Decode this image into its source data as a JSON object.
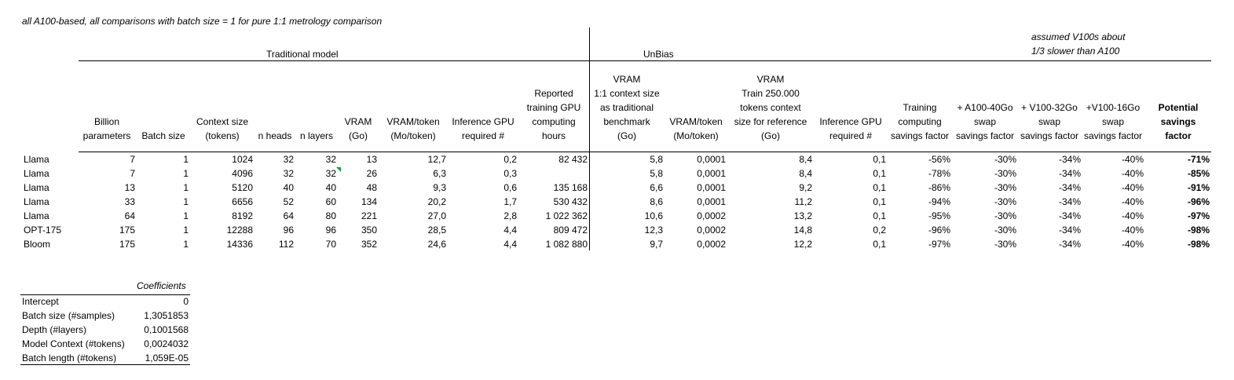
{
  "note": "all A100-based, all comparisons with batch size = 1 for pure 1:1 metrology comparison",
  "groups": {
    "traditional": "Traditional model",
    "unbias": "UnBias",
    "assumed_line1": "assumed V100s about",
    "assumed_line2": "1/3 slower than A100"
  },
  "headers": [
    [
      "Billion",
      "parameters"
    ],
    [
      "Batch size"
    ],
    [
      "Context size",
      "(tokens)"
    ],
    [
      "n heads"
    ],
    [
      "n layers"
    ],
    [
      "VRAM",
      "(Go)"
    ],
    [
      "VRAM/token",
      "(Mo/token)"
    ],
    [
      "Inference GPU",
      "required #"
    ],
    [
      "Reported",
      "training GPU",
      "computing",
      "hours"
    ],
    [
      "VRAM",
      "1:1 context size",
      "as traditional",
      "benchmark",
      "(Go)"
    ],
    [
      "VRAM/token",
      "(Mo/token)"
    ],
    [
      "VRAM",
      "Train 250.000",
      "tokens context",
      "size for reference",
      "(Go)"
    ],
    [
      "Inference GPU",
      "required #"
    ],
    [
      "Training",
      "computing",
      "savings factor"
    ],
    [
      "+ A100-40Go",
      "swap",
      "savings factor"
    ],
    [
      "+ V100-32Go",
      "swap",
      "savings factor"
    ],
    [
      "+V100-16Go",
      "swap",
      "savings factor"
    ],
    [
      "Potential",
      "savings",
      "factor"
    ]
  ],
  "rows": [
    [
      "Llama",
      "7",
      "1",
      "1024",
      "32",
      "32",
      "13",
      "12,7",
      "0,2",
      "82 432",
      "5,8",
      "0,0001",
      "8,4",
      "0,1",
      "-56%",
      "-30%",
      "-34%",
      "-40%",
      "-71%"
    ],
    [
      "Llama",
      "7",
      "1",
      "4096",
      "32",
      "32",
      "26",
      "6,3",
      "0,3",
      "",
      "5,8",
      "0,0001",
      "8,4",
      "0,1",
      "-78%",
      "-30%",
      "-34%",
      "-40%",
      "-85%"
    ],
    [
      "Llama",
      "13",
      "1",
      "5120",
      "40",
      "40",
      "48",
      "9,3",
      "0,6",
      "135 168",
      "6,6",
      "0,0001",
      "9,2",
      "0,1",
      "-86%",
      "-30%",
      "-34%",
      "-40%",
      "-91%"
    ],
    [
      "Llama",
      "33",
      "1",
      "6656",
      "52",
      "60",
      "134",
      "20,2",
      "1,7",
      "530 432",
      "8,6",
      "0,0001",
      "11,2",
      "0,1",
      "-94%",
      "-30%",
      "-34%",
      "-40%",
      "-96%"
    ],
    [
      "Llama",
      "64",
      "1",
      "8192",
      "64",
      "80",
      "221",
      "27,0",
      "2,8",
      "1 022 362",
      "10,6",
      "0,0002",
      "13,2",
      "0,1",
      "-95%",
      "-30%",
      "-34%",
      "-40%",
      "-97%"
    ],
    [
      "OPT-175",
      "175",
      "1",
      "12288",
      "96",
      "96",
      "350",
      "28,5",
      "4,4",
      "809 472",
      "12,3",
      "0,0002",
      "14,8",
      "0,2",
      "-96%",
      "-30%",
      "-34%",
      "-40%",
      "-98%"
    ],
    [
      "Bloom",
      "175",
      "1",
      "14336",
      "112",
      "70",
      "352",
      "24,6",
      "4,4",
      "1 082 880",
      "9,7",
      "0,0002",
      "12,2",
      "0,1",
      "-97%",
      "-30%",
      "-34%",
      "-40%",
      "-98%"
    ]
  ],
  "coefficients": {
    "header": "Coefficients",
    "rows": [
      [
        "Intercept",
        "0"
      ],
      [
        "Batch size (#samples)",
        "1,3051853"
      ],
      [
        "Depth (#layers)",
        "0,1001568"
      ],
      [
        "Model Context (#tokens)",
        "0,0024032"
      ],
      [
        "Batch length (#tokens)",
        "1,059E-05"
      ]
    ]
  },
  "colors": {
    "comment_flag": "#1a9b3a"
  }
}
